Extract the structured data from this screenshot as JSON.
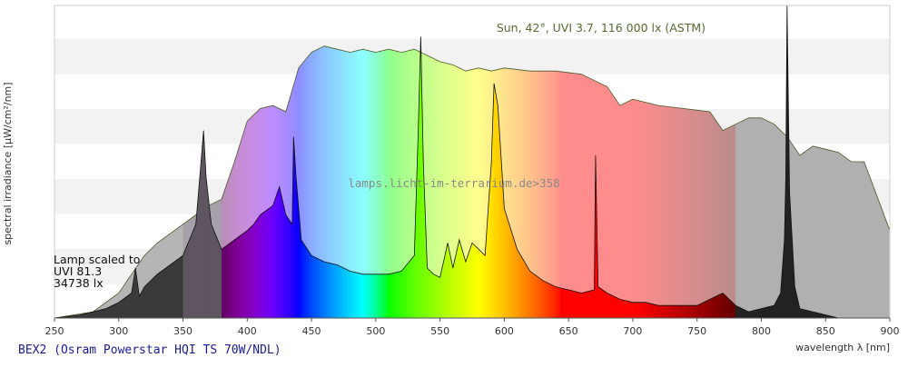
{
  "chart_data": {
    "type": "area",
    "xlabel": "wavelength λ [nm]",
    "ylabel": "spectral irradiance [µW/cm²/nm]",
    "xlim": [
      250,
      900
    ],
    "x_ticks": [
      250,
      300,
      350,
      400,
      450,
      500,
      550,
      600,
      650,
      700,
      750,
      800,
      850,
      900
    ],
    "y_ticks_shown": false,
    "grid": "horizontal alternating bands",
    "footer_title": "BEX2 (Osram Powerstar HQI TS 70W/NDL)",
    "watermark": "lamps.licht-im-terrarium.de>358",
    "annotations": {
      "sun_label": "Sun, 42°, UVI 3.7, 116 000 lx (ASTM)",
      "lamp_lines": [
        "Lamp scaled to",
        "UVI 81.3",
        "34738 lx"
      ]
    },
    "y_range_relative": [
      0,
      1
    ],
    "series": [
      {
        "name": "Sun, 42°, UVI 3.7, 116 000 lx (ASTM)",
        "role": "reference",
        "x": [
          250,
          280,
          300,
          310,
          320,
          330,
          340,
          350,
          360,
          370,
          380,
          390,
          400,
          410,
          420,
          430,
          440,
          450,
          460,
          470,
          480,
          490,
          500,
          510,
          520,
          530,
          540,
          550,
          560,
          570,
          580,
          590,
          600,
          620,
          640,
          660,
          680,
          690,
          700,
          720,
          740,
          760,
          770,
          780,
          790,
          800,
          810,
          820,
          830,
          840,
          850,
          860,
          870,
          880,
          900
        ],
        "y": [
          0.0,
          0.02,
          0.08,
          0.14,
          0.2,
          0.24,
          0.27,
          0.3,
          0.33,
          0.36,
          0.38,
          0.5,
          0.63,
          0.67,
          0.68,
          0.66,
          0.8,
          0.85,
          0.87,
          0.86,
          0.85,
          0.86,
          0.85,
          0.86,
          0.85,
          0.86,
          0.84,
          0.82,
          0.81,
          0.79,
          0.8,
          0.79,
          0.8,
          0.79,
          0.79,
          0.78,
          0.74,
          0.68,
          0.7,
          0.68,
          0.67,
          0.66,
          0.6,
          0.62,
          0.64,
          0.64,
          0.62,
          0.58,
          0.52,
          0.55,
          0.54,
          0.53,
          0.5,
          0.5,
          0.28
        ]
      },
      {
        "name": "Lamp scaled to UVI 81.3",
        "role": "lamp",
        "x": [
          250,
          270,
          290,
          300,
          310,
          313,
          316,
          320,
          330,
          340,
          350,
          360,
          364,
          366,
          368,
          372,
          380,
          390,
          400,
          405,
          410,
          420,
          425,
          430,
          435,
          436,
          438,
          442,
          450,
          460,
          470,
          480,
          490,
          500,
          510,
          520,
          530,
          533,
          535,
          537,
          540,
          545,
          550,
          556,
          560,
          565,
          570,
          575,
          580,
          585,
          590,
          592,
          595,
          600,
          610,
          620,
          630,
          640,
          650,
          660,
          670,
          671,
          673,
          680,
          690,
          700,
          710,
          720,
          740,
          750,
          760,
          770,
          780,
          790,
          800,
          810,
          815,
          818,
          819,
          820,
          822,
          826,
          830,
          840,
          860,
          900
        ],
        "y": [
          0.0,
          0.01,
          0.03,
          0.05,
          0.08,
          0.16,
          0.07,
          0.1,
          0.14,
          0.17,
          0.2,
          0.3,
          0.5,
          0.6,
          0.45,
          0.3,
          0.22,
          0.25,
          0.28,
          0.3,
          0.33,
          0.36,
          0.42,
          0.33,
          0.3,
          0.58,
          0.45,
          0.25,
          0.2,
          0.18,
          0.17,
          0.15,
          0.14,
          0.14,
          0.14,
          0.15,
          0.2,
          0.6,
          0.9,
          0.5,
          0.16,
          0.14,
          0.13,
          0.24,
          0.16,
          0.25,
          0.18,
          0.24,
          0.22,
          0.2,
          0.5,
          0.75,
          0.68,
          0.35,
          0.22,
          0.15,
          0.12,
          0.1,
          0.09,
          0.08,
          0.09,
          0.52,
          0.1,
          0.08,
          0.06,
          0.05,
          0.05,
          0.04,
          0.04,
          0.04,
          0.06,
          0.08,
          0.04,
          0.02,
          0.03,
          0.04,
          0.08,
          0.25,
          0.45,
          1.0,
          0.4,
          0.1,
          0.03,
          0.02,
          0.0,
          0.0
        ]
      }
    ]
  }
}
